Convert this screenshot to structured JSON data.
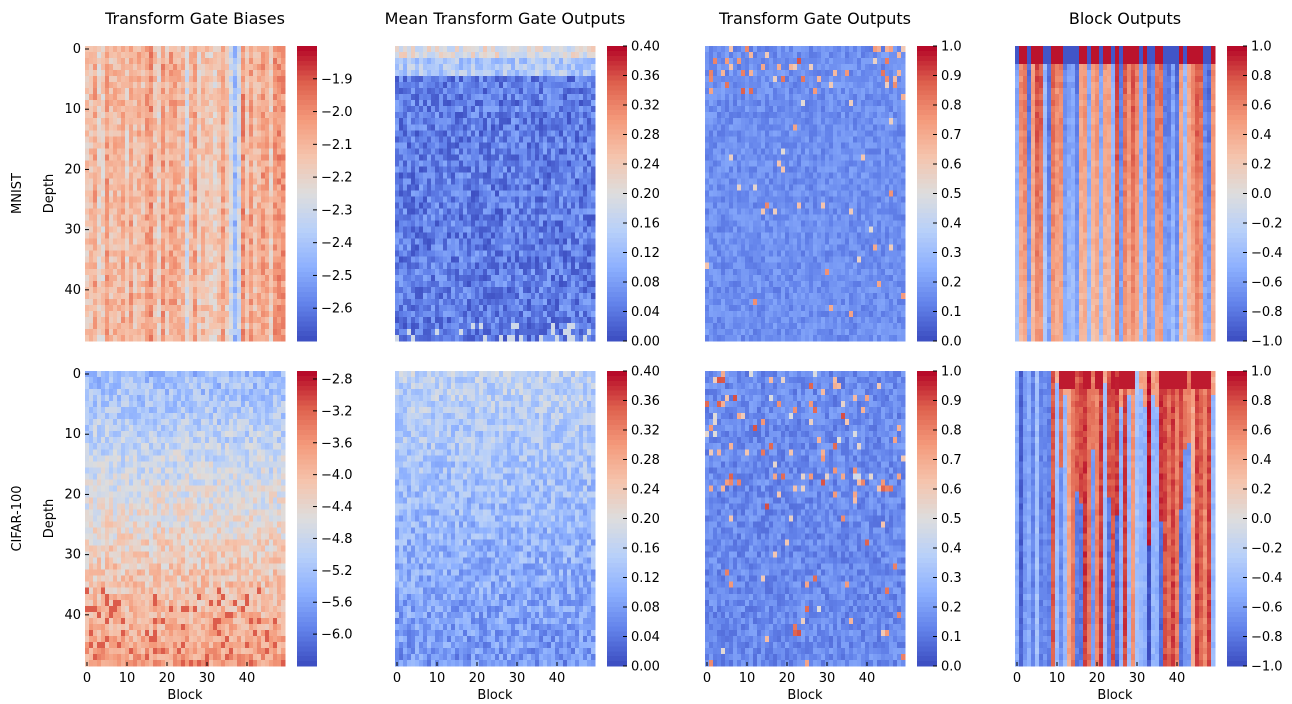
{
  "rows": [
    {
      "label": "MNIST",
      "ylabel": "Depth"
    },
    {
      "label": "CIFAR-100",
      "ylabel": "Depth"
    }
  ],
  "columns": [
    {
      "title": "Transform Gate Biases"
    },
    {
      "title": "Mean Transform Gate Outputs"
    },
    {
      "title": "Transform Gate Outputs"
    },
    {
      "title": "Block Outputs"
    }
  ],
  "colormap": {
    "name": "coolwarm",
    "low_color": "#3b4cc0",
    "mid_color": "#dddddd",
    "high_color": "#b40426"
  },
  "chart_data": [
    {
      "type": "heatmap",
      "title": "Transform Gate Biases",
      "dataset": "MNIST",
      "xlabel": "",
      "ylabel": "Depth",
      "rows": 49,
      "cols": 50,
      "colorbar": {
        "vmin": -2.7,
        "vmax": -1.8,
        "ticks": [
          "−1.9",
          "−2.0",
          "−2.1",
          "−2.2",
          "−2.3",
          "−2.4",
          "−2.5",
          "−2.6"
        ],
        "tick_values": [
          -1.9,
          -2.0,
          -2.1,
          -2.2,
          -2.3,
          -2.4,
          -2.5,
          -2.6
        ]
      },
      "yticks": [
        "0",
        "10",
        "20",
        "30",
        "40"
      ],
      "ytick_values": [
        0,
        10,
        20,
        30,
        40
      ],
      "xticks": [],
      "xtick_values": [],
      "pattern": "mostly around -2.1 (light red) with vertical stripes; dark blue column near block 37",
      "seed": 11
    },
    {
      "type": "heatmap",
      "title": "Mean Transform Gate Outputs",
      "dataset": "MNIST",
      "xlabel": "",
      "ylabel": "",
      "rows": 49,
      "cols": 50,
      "colorbar": {
        "vmin": 0.0,
        "vmax": 0.4,
        "ticks": [
          "0.40",
          "0.36",
          "0.32",
          "0.28",
          "0.24",
          "0.20",
          "0.16",
          "0.12",
          "0.08",
          "0.04",
          "0.00"
        ],
        "tick_values": [
          0.4,
          0.36,
          0.32,
          0.28,
          0.24,
          0.2,
          0.16,
          0.12,
          0.08,
          0.04,
          0.0
        ]
      },
      "yticks": [],
      "ytick_values": [],
      "xticks": [],
      "xtick_values": [],
      "pattern": "first rows ~0.2-0.3, rest mostly ~0.05",
      "seed": 22
    },
    {
      "type": "heatmap",
      "title": "Transform Gate Outputs",
      "dataset": "MNIST",
      "xlabel": "",
      "ylabel": "",
      "rows": 49,
      "cols": 50,
      "colorbar": {
        "vmin": 0.0,
        "vmax": 1.0,
        "ticks": [
          "1.0",
          "0.9",
          "0.8",
          "0.7",
          "0.6",
          "0.5",
          "0.4",
          "0.3",
          "0.2",
          "0.1",
          "0.0"
        ],
        "tick_values": [
          1.0,
          0.9,
          0.8,
          0.7,
          0.6,
          0.5,
          0.4,
          0.3,
          0.2,
          0.1,
          0.0
        ]
      },
      "yticks": [],
      "ytick_values": [],
      "xticks": [],
      "xtick_values": [],
      "pattern": "mostly near 0 with sparse high values in first rows",
      "seed": 33
    },
    {
      "type": "heatmap",
      "title": "Block Outputs",
      "dataset": "MNIST",
      "xlabel": "",
      "ylabel": "",
      "rows": 49,
      "cols": 50,
      "colorbar": {
        "vmin": -1.0,
        "vmax": 1.0,
        "ticks": [
          "1.0",
          "0.8",
          "0.6",
          "0.4",
          "0.2",
          "0.0",
          "−0.2",
          "−0.4",
          "−0.6",
          "−0.8",
          "−1.0"
        ],
        "tick_values": [
          1.0,
          0.8,
          0.6,
          0.4,
          0.2,
          0.0,
          -0.2,
          -0.4,
          -0.6,
          -0.8,
          -1.0
        ]
      },
      "yticks": [],
      "ytick_values": [],
      "xticks": [],
      "xtick_values": [],
      "pattern": "vertical stripes of alternating red and blue, strongest near top",
      "seed": 44
    },
    {
      "type": "heatmap",
      "title": "",
      "dataset": "CIFAR-100",
      "xlabel": "Block",
      "ylabel": "Depth",
      "rows": 49,
      "cols": 50,
      "colorbar": {
        "vmin": -6.4,
        "vmax": -2.7,
        "ticks": [
          "−2.8",
          "−3.2",
          "−3.6",
          "−4.0",
          "−4.4",
          "−4.8",
          "−5.2",
          "−5.6",
          "−6.0"
        ],
        "tick_values": [
          -2.8,
          -3.2,
          -3.6,
          -4.0,
          -4.4,
          -4.8,
          -5.2,
          -5.6,
          -6.0
        ]
      },
      "yticks": [
        "0",
        "10",
        "20",
        "30",
        "40"
      ],
      "ytick_values": [
        0,
        10,
        20,
        30,
        40
      ],
      "xticks": [
        "0",
        "10",
        "20",
        "30",
        "40"
      ],
      "xtick_values": [
        0,
        10,
        20,
        30,
        40
      ],
      "pattern": "top rows blue (~-5), bottom rows red (~-3.8)",
      "seed": 55
    },
    {
      "type": "heatmap",
      "title": "",
      "dataset": "CIFAR-100",
      "xlabel": "Block",
      "ylabel": "",
      "rows": 49,
      "cols": 50,
      "colorbar": {
        "vmin": 0.0,
        "vmax": 0.4,
        "ticks": [
          "0.40",
          "0.36",
          "0.32",
          "0.28",
          "0.24",
          "0.20",
          "0.16",
          "0.12",
          "0.08",
          "0.04",
          "0.00"
        ],
        "tick_values": [
          0.4,
          0.36,
          0.32,
          0.28,
          0.24,
          0.2,
          0.16,
          0.12,
          0.08,
          0.04,
          0.0
        ]
      },
      "yticks": [],
      "ytick_values": [],
      "xticks": [
        "0",
        "10",
        "20",
        "30",
        "40"
      ],
      "xtick_values": [
        0,
        10,
        20,
        30,
        40
      ],
      "pattern": "top rows ~0.15, bottom rows ~0.06",
      "seed": 66
    },
    {
      "type": "heatmap",
      "title": "",
      "dataset": "CIFAR-100",
      "xlabel": "Block",
      "ylabel": "",
      "rows": 49,
      "cols": 50,
      "colorbar": {
        "vmin": 0.0,
        "vmax": 1.0,
        "ticks": [
          "1.0",
          "0.9",
          "0.8",
          "0.7",
          "0.6",
          "0.5",
          "0.4",
          "0.3",
          "0.2",
          "0.1",
          "0.0"
        ],
        "tick_values": [
          1.0,
          0.9,
          0.8,
          0.7,
          0.6,
          0.5,
          0.4,
          0.3,
          0.2,
          0.1,
          0.0
        ]
      },
      "yticks": [],
      "ytick_values": [],
      "xticks": [
        "0",
        "10",
        "20",
        "30",
        "40"
      ],
      "xtick_values": [
        0,
        10,
        20,
        30,
        40
      ],
      "pattern": "mostly near 0 with scattered high values, more near top",
      "seed": 77
    },
    {
      "type": "heatmap",
      "title": "",
      "dataset": "CIFAR-100",
      "xlabel": "Block",
      "ylabel": "",
      "rows": 49,
      "cols": 50,
      "colorbar": {
        "vmin": -1.0,
        "vmax": 1.0,
        "ticks": [
          "1.0",
          "0.8",
          "0.6",
          "0.4",
          "0.2",
          "0.0",
          "−0.2",
          "−0.4",
          "−0.6",
          "−0.8",
          "−1.0"
        ],
        "tick_values": [
          1.0,
          0.8,
          0.6,
          0.4,
          0.2,
          0.0,
          -0.2,
          -0.4,
          -0.6,
          -0.8,
          -1.0
        ]
      },
      "yticks": [],
      "ytick_values": [],
      "xticks": [
        "0",
        "10",
        "20",
        "30",
        "40"
      ],
      "xtick_values": [
        0,
        10,
        20,
        30,
        40
      ],
      "pattern": "blue left columns, red vertical streaks starting at top around blocks 10-45",
      "seed": 88
    }
  ]
}
